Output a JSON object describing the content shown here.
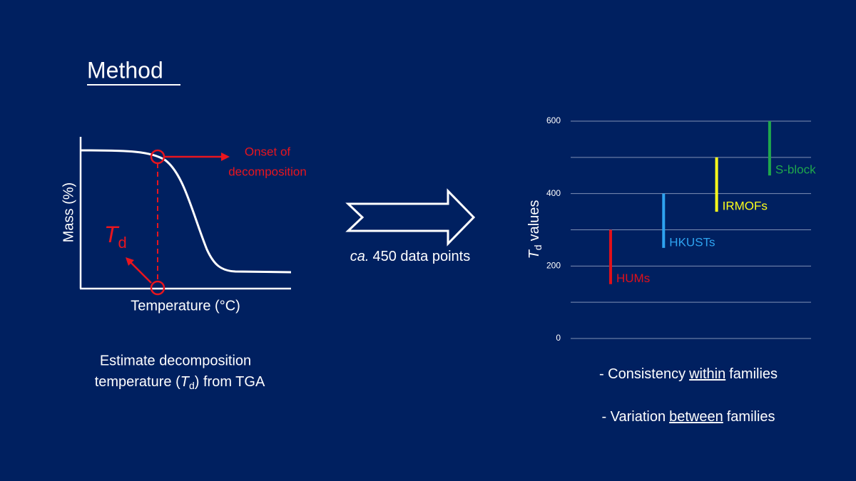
{
  "title": "Method",
  "tga": {
    "y_label": "Mass (%)",
    "x_label": "Temperature (°C)",
    "onset_label": [
      "Onset of",
      "decomposition"
    ],
    "td_symbol": "T",
    "td_subscript": "d"
  },
  "caption": {
    "line1": "Estimate decomposition",
    "line2_before": "temperature (",
    "symbol": "T",
    "subscript": "d",
    "line2_after": ") from TGA"
  },
  "arrow_label": {
    "italic": "ca.",
    "text": "450 data points"
  },
  "conclusions": [
    {
      "before": "- Consistency",
      "underlined": "within",
      "after": "families"
    },
    {
      "before": "- Variation",
      "underlined": "between",
      "after": "families"
    }
  ],
  "chart_data": {
    "type": "range",
    "y_label": {
      "symbol": "T",
      "subscript": "d",
      "text": "values"
    },
    "ylim": [
      0,
      600
    ],
    "yticks": [
      0,
      200,
      400,
      600
    ],
    "minor_yticks": [
      100,
      300,
      500
    ],
    "grid": true,
    "series": [
      {
        "name": "HUMs",
        "color": "#e0101a",
        "low": 150,
        "high": 300
      },
      {
        "name": "HKUSTs",
        "color": "#2ea3f0",
        "low": 250,
        "high": 400
      },
      {
        "name": "IRMOFs",
        "color": "#ffff1a",
        "low": 350,
        "high": 500
      },
      {
        "name": "S-block",
        "color": "#1fa84c",
        "low": 450,
        "high": 600
      }
    ]
  }
}
